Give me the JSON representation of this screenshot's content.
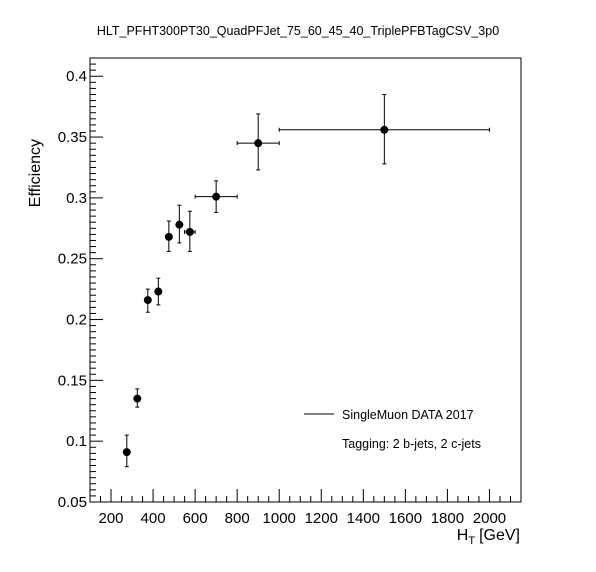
{
  "chart_data": {
    "type": "scatter",
    "title": "HLT_PFHT300PT30_QuadPFJet_75_60_45_40_TriplePFBTagCSV_3p0",
    "xlabel": "H",
    "xlabel_sub": "T",
    "xlabel_unit": "[GeV]",
    "ylabel": "Efficiency",
    "xlim": [
      100,
      2150
    ],
    "ylim": [
      0.05,
      0.415
    ],
    "x_ticks": [
      200,
      400,
      600,
      800,
      1000,
      1200,
      1400,
      1600,
      1800,
      2000
    ],
    "x_tick_labels": [
      "200",
      "400",
      "600",
      "800",
      "1000",
      "1200",
      "1400",
      "1600",
      "1800",
      "2000"
    ],
    "y_ticks": [
      0.05,
      0.1,
      0.15,
      0.2,
      0.25,
      0.3,
      0.35,
      0.4
    ],
    "y_tick_labels": [
      "0.05",
      "0.1",
      "0.15",
      "0.2",
      "0.25",
      "0.3",
      "0.35",
      "0.4"
    ],
    "grid": false,
    "legend_position": "bottom-right",
    "series": [
      {
        "name": "SingleMuon DATA 2017",
        "marker": "filled-circle",
        "color": "#000000",
        "points": [
          {
            "x": 275,
            "y": 0.091,
            "xerr": 12,
            "ylow": 0.079,
            "yhigh": 0.105
          },
          {
            "x": 325,
            "y": 0.135,
            "xerr": 12,
            "ylow": 0.128,
            "yhigh": 0.143
          },
          {
            "x": 375,
            "y": 0.216,
            "xerr": 12,
            "ylow": 0.206,
            "yhigh": 0.225
          },
          {
            "x": 425,
            "y": 0.223,
            "xerr": 12,
            "ylow": 0.212,
            "yhigh": 0.234
          },
          {
            "x": 475,
            "y": 0.268,
            "xerr": 12,
            "ylow": 0.256,
            "yhigh": 0.281
          },
          {
            "x": 525,
            "y": 0.278,
            "xerr": 12,
            "ylow": 0.263,
            "yhigh": 0.294
          },
          {
            "x": 575,
            "y": 0.272,
            "xerr": 25,
            "ylow": 0.256,
            "yhigh": 0.289
          },
          {
            "x": 700,
            "y": 0.301,
            "xerr": 100,
            "ylow": 0.288,
            "yhigh": 0.314
          },
          {
            "x": 900,
            "y": 0.345,
            "xerr": 100,
            "ylow": 0.323,
            "yhigh": 0.369
          },
          {
            "x": 1500,
            "y": 0.356,
            "xerr": 500,
            "ylow": 0.328,
            "yhigh": 0.385
          }
        ]
      }
    ],
    "annotations": [
      "Tagging: 2 b-jets, 2 c-jets"
    ]
  }
}
